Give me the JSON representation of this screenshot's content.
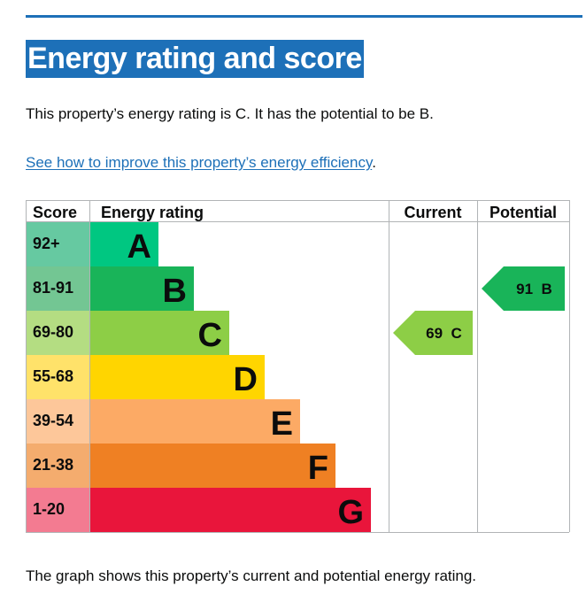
{
  "page": {
    "title": "Energy rating and score",
    "intro": "This property’s energy rating is C. It has the potential to be B.",
    "link_text": "See how to improve this property’s energy efficiency",
    "link_suffix": ".",
    "caption": "The graph shows this property’s current and potential energy rating."
  },
  "chart_data": {
    "type": "table",
    "headers": {
      "score": "Score",
      "rating": "Energy rating",
      "current": "Current",
      "potential": "Potential"
    },
    "bands": [
      {
        "score": "92+",
        "letter": "A",
        "color": "#4fbf8f",
        "score_color": "#66c9a1",
        "bar_color": "#00c781"
      },
      {
        "score": "81-91",
        "letter": "B",
        "color": "#19b459",
        "score_color": "#73c693",
        "bar_color": "#19b459"
      },
      {
        "score": "69-80",
        "letter": "C",
        "color": "#8dce46",
        "score_color": "#b4dd82",
        "bar_color": "#8dce46"
      },
      {
        "score": "55-68",
        "letter": "D",
        "color": "#ffd500",
        "score_color": "#ffe26a",
        "bar_color": "#ffd500"
      },
      {
        "score": "39-54",
        "letter": "E",
        "color": "#fcaa65",
        "score_color": "#fdc79a",
        "bar_color": "#fcaa65"
      },
      {
        "score": "21-38",
        "letter": "F",
        "color": "#ef8023",
        "score_color": "#f4ac6e",
        "bar_color": "#ef8023"
      },
      {
        "score": "1-20",
        "letter": "G",
        "color": "#e9153b",
        "score_color": "#f37b91",
        "bar_color": "#e9153b"
      }
    ],
    "current": {
      "score": 69,
      "band": "C",
      "label": "69  C",
      "color": "#8dce46"
    },
    "potential": {
      "score": 91,
      "band": "B",
      "label": "91  B",
      "color": "#19b459"
    }
  }
}
